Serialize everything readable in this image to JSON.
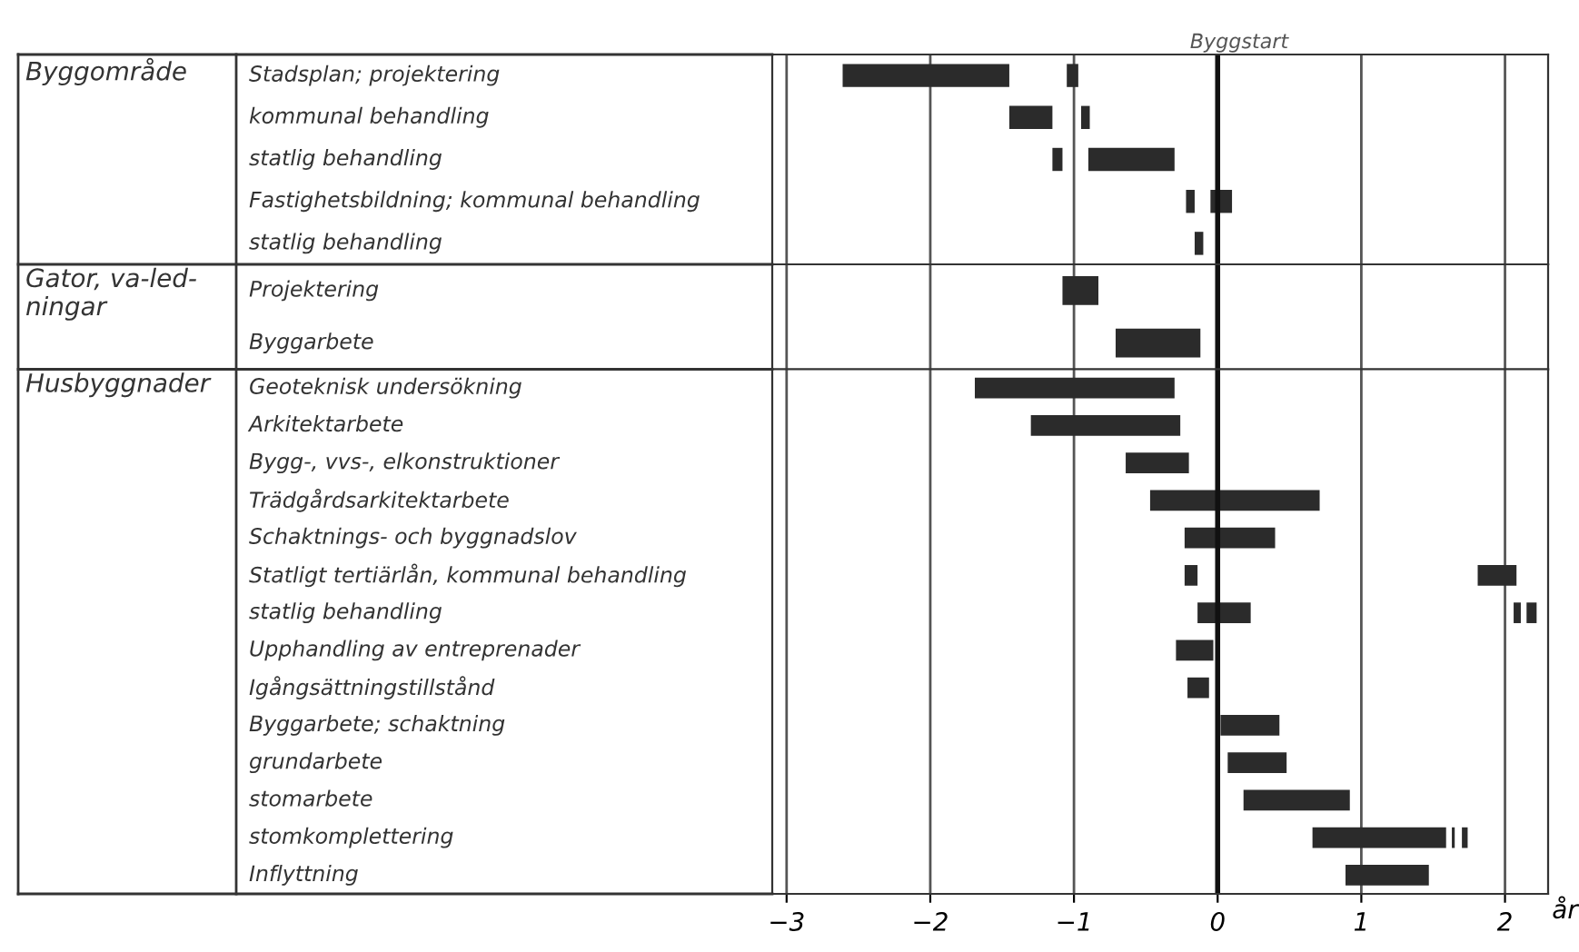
{
  "chart_data": [
    {
      "type": "bar",
      "orientation": "horizontal",
      "ylabel": "Byggområde",
      "tick_labels": false,
      "categories": [
        "Stadsplan; projektering",
        "kommunal behandling",
        "statlig behandling",
        "Fastighetsbildning; kommunal behandling",
        "statlig behandling"
      ],
      "series": [
        {
          "color": "#2b2b2b",
          "base": [
            -2.61,
            -1.45,
            -1.15,
            -0.22,
            -0.16
          ],
          "values": [
            1.16,
            0.3,
            0.07,
            0.06,
            0.06
          ]
        },
        {
          "color": "#2b2b2b",
          "base": [
            -1.05,
            -0.95,
            -0.9,
            -0.05,
            null
          ],
          "values": [
            0.08,
            0.06,
            0.6,
            0.15,
            null
          ]
        }
      ],
      "ref_lines": [
        {
          "axis": "x",
          "value": 0,
          "label": "Byggstart"
        }
      ],
      "xlim": [
        -3.1,
        2.3
      ],
      "xticks": [
        -3,
        -2,
        -1,
        0,
        1,
        2
      ],
      "grid": "x"
    },
    {
      "type": "bar",
      "orientation": "horizontal",
      "ylabel": "Gator, va-led-\nningar",
      "tick_labels": false,
      "categories": [
        "Projektering",
        "Byggarbete"
      ],
      "series": [
        {
          "color": "#2b2b2b",
          "base": [
            -1.08,
            -0.71
          ],
          "values": [
            0.25,
            0.59
          ]
        }
      ],
      "ref_lines": [
        {
          "axis": "x",
          "value": 0
        }
      ],
      "xlim": [
        -3.1,
        2.3
      ],
      "xticks": [
        -3,
        -2,
        -1,
        0,
        1,
        2
      ],
      "grid": "x"
    },
    {
      "type": "bar",
      "orientation": "horizontal",
      "ylabel": "Husbyggnader",
      "xlabel": "år",
      "tick_labels": "x",
      "categories": [
        "Geoteknisk undersökning",
        "Arkitektarbete",
        "Bygg-, vvs-, elkonstruktioner",
        "Trädgårdsarkitektarbete",
        "Schaktnings- och byggnadslov",
        "Statligt tertiärlån, kommunal behandling",
        "statlig behandling",
        "Upphandling av entreprenader",
        "Igångsättningstillstånd",
        "Byggarbete; schaktning",
        "grundarbete",
        "stomarbete",
        "stomkomplettering",
        "Inflyttning"
      ],
      "series": [
        {
          "color": "#2b2b2b",
          "base": [
            -1.69,
            -1.3,
            -0.64,
            -0.47,
            -0.23,
            -0.23,
            -0.14,
            -0.29,
            -0.21,
            0.02,
            0.07,
            0.18,
            0.66,
            0.89
          ],
          "values": [
            1.39,
            1.04,
            0.44,
            1.18,
            0.63,
            0.09,
            0.37,
            0.26,
            0.15,
            0.41,
            0.41,
            0.74,
            0.93,
            0.58
          ]
        },
        {
          "color": "#2b2b2b",
          "base": [
            null,
            null,
            null,
            null,
            null,
            1.81,
            2.06,
            null,
            null,
            null,
            null,
            null,
            1.63,
            null
          ],
          "values": [
            null,
            null,
            null,
            null,
            null,
            0.27,
            0.05,
            null,
            null,
            null,
            null,
            null,
            0.02,
            null
          ]
        },
        {
          "color": "#2b2b2b",
          "base": [
            null,
            null,
            null,
            null,
            null,
            null,
            2.15,
            null,
            null,
            null,
            null,
            null,
            1.7,
            null
          ],
          "values": [
            null,
            null,
            null,
            null,
            null,
            null,
            0.07,
            null,
            null,
            null,
            null,
            null,
            0.04,
            null
          ]
        }
      ],
      "ref_lines": [
        {
          "axis": "x",
          "value": 0
        }
      ],
      "xlim": [
        -3.1,
        2.3
      ],
      "xticks": [
        {
          "value": -3,
          "label": "−3"
        },
        {
          "value": -2,
          "label": "−2"
        },
        {
          "value": -1,
          "label": "−1"
        },
        0,
        1,
        2
      ],
      "grid": "x"
    }
  ]
}
